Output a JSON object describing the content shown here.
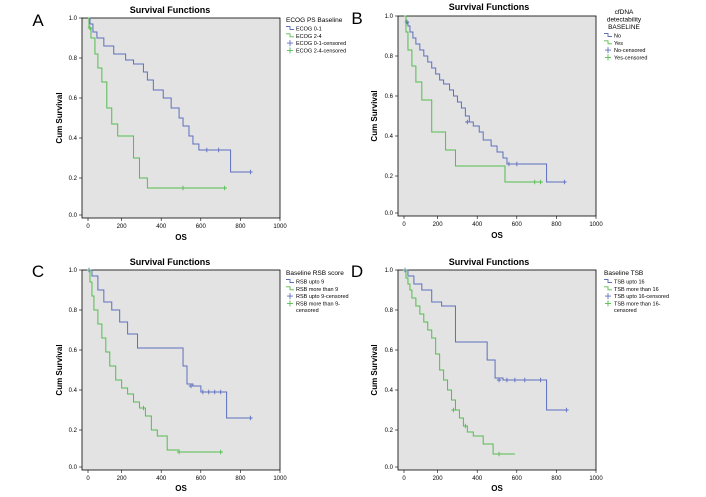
{
  "colors": {
    "series1": "#5e6fbd",
    "series2": "#53bd4e",
    "plot_bg": "#e3e3e3"
  },
  "chart_data": [
    {
      "type": "line",
      "panel": "A",
      "title": "Survival Functions",
      "xlabel": "OS",
      "ylabel": "Cum Survival",
      "xlim": [
        0,
        1000
      ],
      "ylim": [
        0,
        1
      ],
      "xticks": [
        "0",
        "200",
        "400",
        "600",
        "800",
        "1000"
      ],
      "yticks": [
        "0.0",
        "0.2",
        "0.4",
        "0.6",
        "0.8",
        "1.0"
      ],
      "legend": {
        "title": [
          "ECOG PS Baseline"
        ],
        "entries": [
          {
            "label": "ECOG 0-1",
            "symbol": "line",
            "series": 0
          },
          {
            "label": "ECOG 2-4",
            "symbol": "line",
            "series": 1
          },
          {
            "label": "ECOG 0-1-censored",
            "symbol": "plus",
            "series": 0
          },
          {
            "label": "ECOG 2-4-censored",
            "symbol": "plus",
            "series": 1
          }
        ]
      },
      "series": [
        {
          "x": [
            0,
            10,
            25,
            45,
            80,
            130,
            190,
            230,
            280,
            300,
            330,
            380,
            420,
            460,
            480,
            510,
            530,
            560,
            600,
            720,
            810
          ],
          "y": [
            1.0,
            0.97,
            0.93,
            0.9,
            0.86,
            0.82,
            0.79,
            0.77,
            0.73,
            0.69,
            0.64,
            0.6,
            0.55,
            0.5,
            0.46,
            0.41,
            0.37,
            0.34,
            0.34,
            0.23,
            0.23
          ],
          "censored": [
            [
              600,
              0.34
            ],
            [
              660,
              0.34
            ],
            [
              820,
              0.23
            ]
          ]
        },
        {
          "x": [
            0,
            5,
            15,
            35,
            50,
            70,
            95,
            120,
            150,
            200,
            230,
            260,
            300,
            690
          ],
          "y": [
            1.0,
            0.95,
            0.9,
            0.82,
            0.75,
            0.68,
            0.55,
            0.47,
            0.41,
            0.41,
            0.3,
            0.2,
            0.15,
            0.15
          ],
          "censored": [
            [
              10,
              0.95
            ],
            [
              480,
              0.15
            ],
            [
              690,
              0.15
            ]
          ]
        }
      ]
    },
    {
      "type": "line",
      "panel": "B",
      "title": "Survival Functions",
      "xlabel": "OS",
      "ylabel": "Cum Survival",
      "xlim": [
        0,
        1000
      ],
      "ylim": [
        0,
        1
      ],
      "xticks": [
        "0",
        "200",
        "400",
        "600",
        "800",
        "1000"
      ],
      "yticks": [
        "0.0",
        "0.2",
        "0.4",
        "0.6",
        "0.8",
        "1.0"
      ],
      "legend": {
        "title": [
          "cfDNA",
          "detectability",
          "BASELINE"
        ],
        "entries": [
          {
            "label": "No",
            "symbol": "line",
            "series": 0
          },
          {
            "label": "Yes",
            "symbol": "line",
            "series": 1
          },
          {
            "label": "No-censored",
            "symbol": "plus",
            "series": 0
          },
          {
            "label": "Yes-censored",
            "symbol": "plus",
            "series": 1
          }
        ]
      },
      "series": [
        {
          "x": [
            0,
            10,
            20,
            30,
            45,
            60,
            80,
            100,
            120,
            140,
            160,
            180,
            200,
            230,
            250,
            270,
            290,
            310,
            330,
            350,
            380,
            400,
            440,
            470,
            500,
            520,
            560,
            720,
            810
          ],
          "y": [
            1.0,
            0.97,
            0.95,
            0.92,
            0.89,
            0.86,
            0.83,
            0.8,
            0.77,
            0.74,
            0.71,
            0.68,
            0.66,
            0.63,
            0.6,
            0.57,
            0.54,
            0.5,
            0.47,
            0.45,
            0.42,
            0.38,
            0.35,
            0.32,
            0.29,
            0.26,
            0.26,
            0.17,
            0.17
          ],
          "censored": [
            [
              15,
              0.97
            ],
            [
              320,
              0.47
            ],
            [
              530,
              0.26
            ],
            [
              570,
              0.26
            ],
            [
              810,
              0.17
            ]
          ]
        },
        {
          "x": [
            0,
            10,
            20,
            40,
            60,
            90,
            140,
            210,
            260,
            510,
            680
          ],
          "y": [
            1.0,
            0.92,
            0.83,
            0.75,
            0.67,
            0.58,
            0.42,
            0.33,
            0.25,
            0.17,
            0.17
          ],
          "censored": [
            [
              660,
              0.17
            ],
            [
              690,
              0.17
            ]
          ]
        }
      ]
    },
    {
      "type": "line",
      "panel": "C",
      "title": "Survival Functions",
      "xlabel": "OS",
      "ylabel": "Cum Survival",
      "xlim": [
        0,
        1000
      ],
      "ylim": [
        0,
        1
      ],
      "xticks": [
        "0",
        "200",
        "400",
        "600",
        "800",
        "1000"
      ],
      "yticks": [
        "0.0",
        "0.2",
        "0.4",
        "0.6",
        "0.8",
        "1.0"
      ],
      "legend": {
        "title": [
          "Baseline RSB score"
        ],
        "entries": [
          {
            "label": "RSB upto 9",
            "symbol": "line",
            "series": 0
          },
          {
            "label": "RSB more than 9",
            "symbol": "line",
            "series": 1
          },
          {
            "label": "RSB upto 9-censored",
            "symbol": "plus",
            "series": 0
          },
          {
            "label": [
              "RSB more than 9-",
              "censored"
            ],
            "symbol": "plus",
            "series": 1
          }
        ]
      },
      "series": [
        {
          "x": [
            0,
            20,
            50,
            80,
            120,
            160,
            200,
            250,
            380,
            480,
            500,
            530,
            570,
            700,
            810
          ],
          "y": [
            1.0,
            0.97,
            0.9,
            0.84,
            0.8,
            0.74,
            0.68,
            0.61,
            0.61,
            0.52,
            0.43,
            0.42,
            0.39,
            0.26,
            0.26
          ],
          "censored": [
            [
              5,
              1.0
            ],
            [
              520,
              0.42
            ],
            [
              580,
              0.39
            ],
            [
              610,
              0.39
            ],
            [
              640,
              0.39
            ],
            [
              670,
              0.39
            ],
            [
              820,
              0.26
            ]
          ]
        },
        {
          "x": [
            0,
            10,
            20,
            30,
            50,
            70,
            90,
            110,
            140,
            170,
            200,
            230,
            260,
            290,
            320,
            350,
            400,
            460,
            660
          ],
          "y": [
            1.0,
            0.94,
            0.87,
            0.8,
            0.73,
            0.66,
            0.59,
            0.52,
            0.45,
            0.41,
            0.38,
            0.34,
            0.31,
            0.27,
            0.2,
            0.17,
            0.1,
            0.09,
            0.09
          ],
          "censored": [
            [
              280,
              0.31
            ],
            [
              460,
              0.09
            ],
            [
              670,
              0.09
            ]
          ]
        }
      ]
    },
    {
      "type": "line",
      "panel": "D",
      "title": "Survival Functions",
      "xlabel": "OS",
      "ylabel": "Cum Survival",
      "xlim": [
        0,
        1000
      ],
      "ylim": [
        0,
        1
      ],
      "xticks": [
        "0",
        "200",
        "400",
        "600",
        "800",
        "1000"
      ],
      "yticks": [
        "0.0",
        "0.2",
        "0.4",
        "0.6",
        "0.8",
        "1.0"
      ],
      "legend": {
        "title": [
          "Baseline TSB"
        ],
        "entries": [
          {
            "label": "TSB upto 16",
            "symbol": "line",
            "series": 0
          },
          {
            "label": "TSB more than 16",
            "symbol": "line",
            "series": 1
          },
          {
            "label": "TSB upto 16-censored",
            "symbol": "plus",
            "series": 0
          },
          {
            "label": [
              "TSB more than 16-",
              "censored"
            ],
            "symbol": "plus",
            "series": 1
          }
        ]
      },
      "series": [
        {
          "x": [
            0,
            20,
            50,
            90,
            140,
            190,
            260,
            380,
            420,
            460,
            500,
            720,
            810
          ],
          "y": [
            1.0,
            0.97,
            0.93,
            0.9,
            0.84,
            0.82,
            0.64,
            0.64,
            0.55,
            0.46,
            0.45,
            0.3,
            0.3
          ],
          "censored": [
            [
              5,
              1.0
            ],
            [
              480,
              0.45
            ],
            [
              520,
              0.45
            ],
            [
              560,
              0.45
            ],
            [
              610,
              0.45
            ],
            [
              690,
              0.45
            ],
            [
              820,
              0.3
            ]
          ]
        },
        {
          "x": [
            0,
            10,
            20,
            30,
            40,
            60,
            80,
            100,
            120,
            140,
            160,
            180,
            200,
            220,
            240,
            260,
            280,
            300,
            320,
            350,
            400,
            450,
            560
          ],
          "y": [
            1.0,
            0.96,
            0.93,
            0.9,
            0.86,
            0.82,
            0.78,
            0.74,
            0.7,
            0.66,
            0.58,
            0.5,
            0.45,
            0.4,
            0.35,
            0.3,
            0.26,
            0.22,
            0.19,
            0.17,
            0.13,
            0.08,
            0.08
          ],
          "censored": [
            [
              250,
              0.3
            ],
            [
              310,
              0.22
            ],
            [
              480,
              0.08
            ]
          ]
        }
      ]
    }
  ]
}
